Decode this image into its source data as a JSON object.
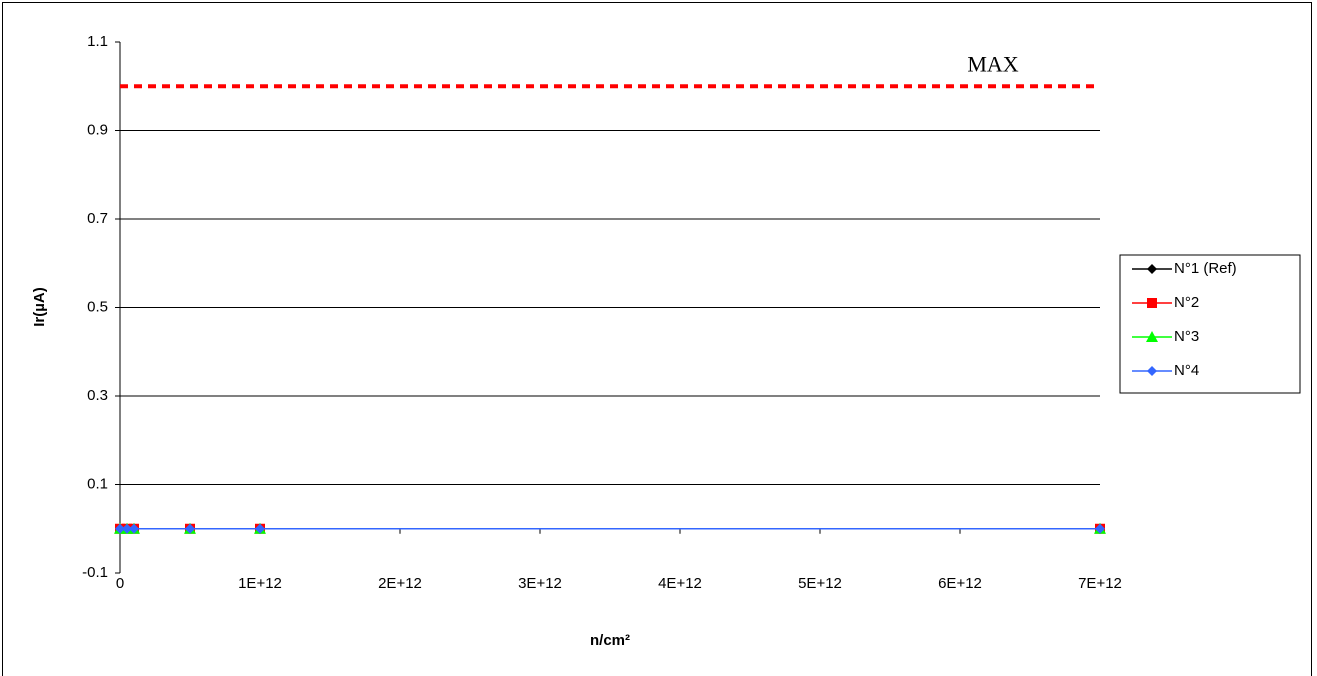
{
  "chart_data": {
    "type": "line",
    "y_label": "Ir(µA)",
    "x_label": "n/cm²",
    "x": [
      0,
      50000000000,
      100000000000,
      500000000000,
      1000000000000,
      7000000000000
    ],
    "series": [
      {
        "name": "N°1 (Ref)",
        "color": "#000000",
        "marker": "diamond",
        "values": [
          0,
          0,
          0,
          0,
          0,
          0
        ]
      },
      {
        "name": "N°2",
        "color": "#ff0000",
        "marker": "square",
        "values": [
          0,
          0,
          0,
          0,
          0,
          0
        ]
      },
      {
        "name": "N°3",
        "color": "#00ff00",
        "marker": "triangle",
        "values": [
          0,
          0,
          0,
          0,
          0,
          0
        ]
      },
      {
        "name": "N°4",
        "color": "#3366ff",
        "marker": "diamond",
        "values": [
          0,
          0,
          0,
          0,
          0,
          0
        ]
      }
    ],
    "xlim": [
      0,
      7000000000000
    ],
    "xticks": [
      0,
      {
        "value": 1000000000000,
        "label": "1E+12"
      },
      {
        "value": 2000000000000,
        "label": "2E+12"
      },
      {
        "value": 3000000000000,
        "label": "3E+12"
      },
      {
        "value": 4000000000000,
        "label": "4E+12"
      },
      {
        "value": 5000000000000,
        "label": "5E+12"
      },
      {
        "value": 6000000000000,
        "label": "6E+12"
      },
      {
        "value": 7000000000000,
        "label": "7E+12"
      }
    ],
    "ylim": [
      -0.1,
      1.1
    ],
    "yticks": [
      -0.1,
      0.1,
      0.3,
      0.5,
      0.7,
      0.9,
      1.1
    ],
    "grid": true,
    "legend": "right",
    "max_line": {
      "label": "MAX",
      "value": 1,
      "color": "#ff0000"
    }
  }
}
